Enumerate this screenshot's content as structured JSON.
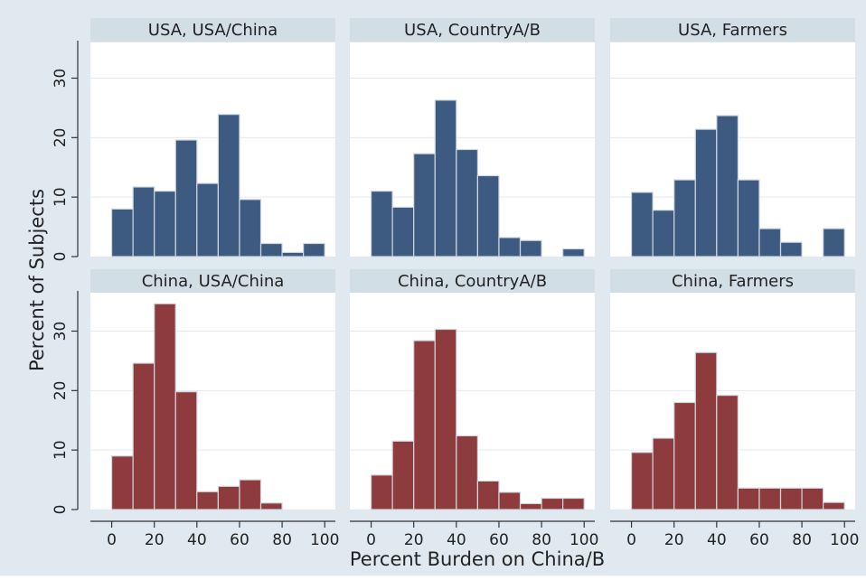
{
  "chart_data": {
    "type": "bar",
    "layout": "2x3 facet grid of histograms",
    "x_axis_label": "Percent Burden on China/B",
    "y_axis_label": "Percent of Subjects",
    "x_ticks": [
      0,
      20,
      40,
      60,
      80,
      100
    ],
    "y_ticks": [
      0,
      10,
      20,
      30
    ],
    "xlim": [
      -10,
      105
    ],
    "ylim": [
      0,
      36
    ],
    "bin_width": 10,
    "bin_centers": [
      5,
      15,
      25,
      35,
      45,
      55,
      65,
      75,
      85,
      95
    ],
    "colors": {
      "USA": "#3d5a80",
      "China": "#8e3b3e",
      "bar_edge": "#cfd8e0",
      "panel_background": "#dfe9ef",
      "header_background": "#ffffff"
    },
    "panels": [
      {
        "title": "USA, USA/China",
        "series": "USA",
        "values": [
          8,
          11.7,
          11,
          19.6,
          12.3,
          23.9,
          9.6,
          2.2,
          0.7,
          2.2
        ]
      },
      {
        "title": "USA, CountryA/B",
        "series": "USA",
        "values": [
          11,
          8.3,
          17.3,
          26.3,
          18,
          13.6,
          3.2,
          2.7,
          0,
          1.3
        ]
      },
      {
        "title": "USA, Farmers",
        "series": "USA",
        "values": [
          10.8,
          7.8,
          12.9,
          21.4,
          23.7,
          12.9,
          4.7,
          2.4,
          0,
          4.7
        ]
      },
      {
        "title": "China, USA/China",
        "series": "China",
        "values": [
          9,
          24.6,
          34.6,
          19.8,
          3,
          3.9,
          5,
          1.1,
          0,
          0
        ]
      },
      {
        "title": "China, CountryA/B",
        "series": "China",
        "values": [
          5.8,
          11.5,
          28.4,
          30.3,
          12.4,
          4.8,
          2.9,
          1,
          1.9,
          1.9
        ]
      },
      {
        "title": "China, Farmers",
        "series": "China",
        "values": [
          9.6,
          12,
          18,
          26.4,
          19.2,
          3.6,
          3.6,
          3.6,
          3.6,
          1.2
        ]
      }
    ]
  }
}
